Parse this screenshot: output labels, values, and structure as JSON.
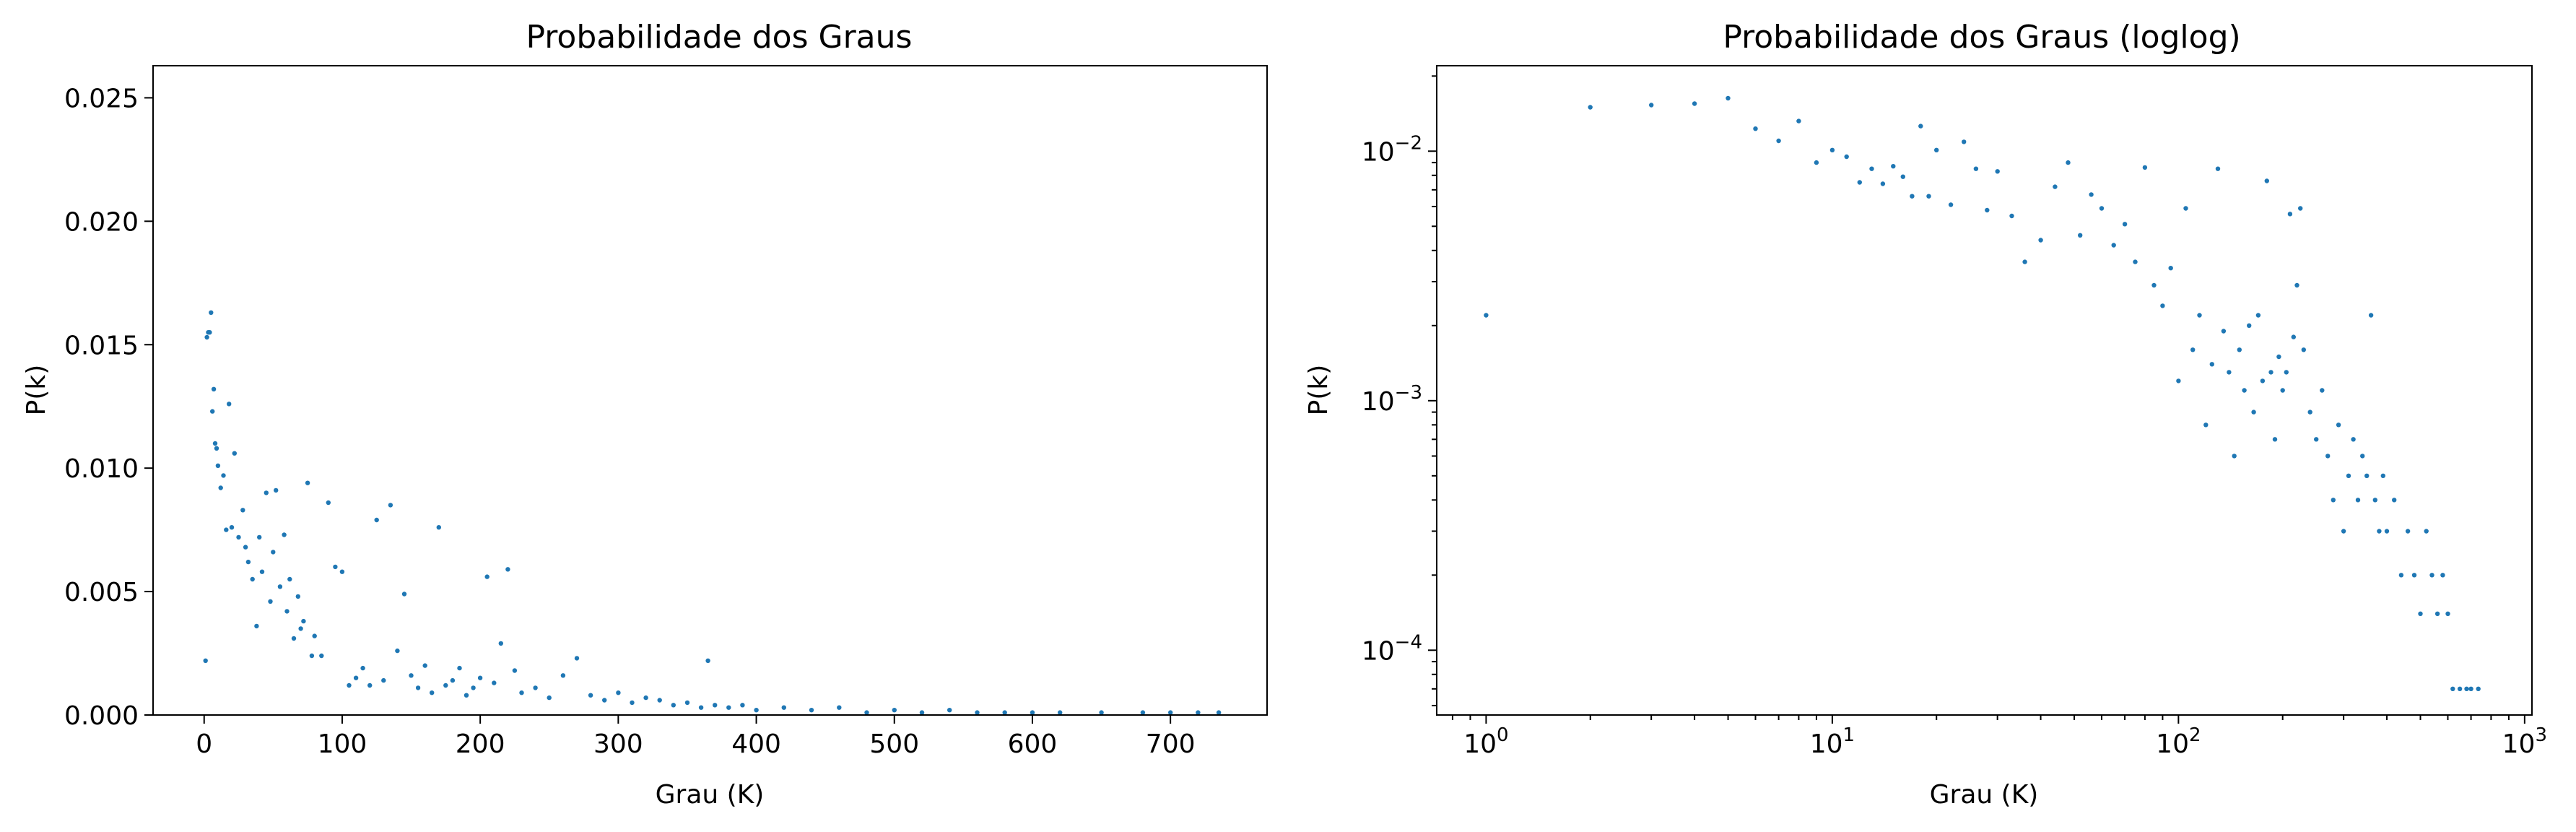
{
  "chart_data": [
    {
      "type": "scatter",
      "title": "Probabilidade dos Graus",
      "xlabel": "Grau (K)",
      "ylabel": "P(k)",
      "xscale": "linear",
      "yscale": "linear",
      "xlim": [
        -37,
        770
      ],
      "ylim": [
        0,
        0.0263
      ],
      "xticks": [
        0,
        100,
        200,
        300,
        400,
        500,
        600,
        700
      ],
      "xtick_labels": [
        "0",
        "100",
        "200",
        "300",
        "400",
        "500",
        "600",
        "700"
      ],
      "yticks": [
        0,
        0.005,
        0.01,
        0.015,
        0.02,
        0.025
      ],
      "ytick_labels": [
        "0.000",
        "0.005",
        "0.010",
        "0.015",
        "0.020",
        "0.025"
      ],
      "color": "#1f77b4",
      "x": [
        1,
        2,
        3,
        4,
        5,
        6,
        7,
        8,
        9,
        10,
        12,
        14,
        16,
        18,
        20,
        22,
        25,
        28,
        30,
        32,
        35,
        38,
        40,
        42,
        45,
        48,
        50,
        52,
        55,
        58,
        60,
        62,
        65,
        68,
        70,
        72,
        75,
        78,
        80,
        85,
        90,
        95,
        100,
        105,
        110,
        115,
        120,
        125,
        130,
        135,
        140,
        145,
        150,
        155,
        160,
        165,
        170,
        175,
        180,
        185,
        190,
        195,
        200,
        205,
        210,
        215,
        220,
        225,
        230,
        240,
        250,
        260,
        270,
        280,
        290,
        300,
        310,
        320,
        330,
        340,
        350,
        360,
        365,
        370,
        380,
        390,
        400,
        420,
        440,
        460,
        480,
        500,
        520,
        540,
        560,
        580,
        600,
        620,
        650,
        680,
        700,
        720,
        735
      ],
      "y": [
        0.0022,
        0.0153,
        0.0155,
        0.0155,
        0.0163,
        0.0123,
        0.0132,
        0.011,
        0.0108,
        0.0101,
        0.0092,
        0.0097,
        0.0075,
        0.0126,
        0.0076,
        0.0106,
        0.0072,
        0.0083,
        0.0068,
        0.0062,
        0.0055,
        0.0036,
        0.0072,
        0.0058,
        0.009,
        0.0046,
        0.0066,
        0.0091,
        0.0052,
        0.0073,
        0.0042,
        0.0055,
        0.0031,
        0.0048,
        0.0035,
        0.0038,
        0.0094,
        0.0024,
        0.0032,
        0.0024,
        0.0086,
        0.006,
        0.0058,
        0.0012,
        0.0015,
        0.0019,
        0.0012,
        0.0079,
        0.0014,
        0.0085,
        0.0026,
        0.0049,
        0.0016,
        0.0011,
        0.002,
        0.0009,
        0.0076,
        0.0012,
        0.0014,
        0.0019,
        0.0008,
        0.0011,
        0.0015,
        0.0056,
        0.0013,
        0.0029,
        0.0059,
        0.0018,
        0.0009,
        0.0011,
        0.0007,
        0.0016,
        0.0023,
        0.0008,
        0.0006,
        0.0009,
        0.0005,
        0.0007,
        0.0006,
        0.0004,
        0.0005,
        0.0003,
        0.0022,
        0.0004,
        0.0003,
        0.0004,
        0.0002,
        0.0003,
        0.0002,
        0.0003,
        0.0001,
        0.0002,
        0.0001,
        0.0002,
        0.0001,
        0.0001,
        0.0001,
        0.0001,
        0.0001,
        0.0001,
        0.0001,
        0.0001,
        0.0001
      ]
    },
    {
      "type": "scatter",
      "title": "Probabilidade dos Graus (loglog)",
      "xlabel": "Grau (K)",
      "ylabel": "P(k)",
      "xscale": "log",
      "yscale": "log",
      "xlim": [
        0.72,
        1050
      ],
      "ylim": [
        5.5e-05,
        0.022
      ],
      "xticks": [
        1,
        10,
        100,
        1000
      ],
      "xtick_labels": [
        {
          "base": "10",
          "exp": "0"
        },
        {
          "base": "10",
          "exp": "1"
        },
        {
          "base": "10",
          "exp": "2"
        },
        {
          "base": "10",
          "exp": "3"
        }
      ],
      "yticks": [
        0.0001,
        0.001,
        0.01
      ],
      "ytick_labels": [
        {
          "base": "10",
          "exp": "−4"
        },
        {
          "base": "10",
          "exp": "−3"
        },
        {
          "base": "10",
          "exp": "−2"
        }
      ],
      "color": "#1f77b4",
      "x": [
        1,
        2,
        3,
        4,
        5,
        6,
        7,
        8,
        9,
        10,
        11,
        12,
        13,
        14,
        15,
        16,
        17,
        18,
        19,
        20,
        22,
        24,
        26,
        28,
        30,
        33,
        36,
        40,
        44,
        48,
        52,
        56,
        60,
        65,
        70,
        75,
        80,
        85,
        90,
        95,
        100,
        105,
        110,
        115,
        120,
        125,
        130,
        135,
        140,
        145,
        150,
        155,
        160,
        165,
        170,
        175,
        180,
        185,
        190,
        195,
        200,
        205,
        210,
        215,
        220,
        225,
        230,
        240,
        250,
        260,
        270,
        280,
        290,
        300,
        310,
        320,
        330,
        340,
        350,
        360,
        370,
        380,
        390,
        400,
        420,
        440,
        460,
        480,
        500,
        520,
        540,
        560,
        580,
        600,
        620,
        650,
        680,
        700,
        735
      ],
      "y": [
        0.0022,
        0.015,
        0.0153,
        0.0155,
        0.0163,
        0.0123,
        0.011,
        0.0132,
        0.009,
        0.0101,
        0.0095,
        0.0075,
        0.0085,
        0.0074,
        0.0087,
        0.0079,
        0.0066,
        0.0126,
        0.0066,
        0.0101,
        0.0061,
        0.0109,
        0.0085,
        0.0058,
        0.0083,
        0.0055,
        0.0036,
        0.0044,
        0.0072,
        0.009,
        0.0046,
        0.0067,
        0.0059,
        0.0042,
        0.0051,
        0.0036,
        0.0086,
        0.0029,
        0.0024,
        0.0034,
        0.0012,
        0.0059,
        0.0016,
        0.0022,
        0.0008,
        0.0014,
        0.0085,
        0.0019,
        0.0013,
        0.0006,
        0.0016,
        0.0011,
        0.002,
        0.0009,
        0.0022,
        0.0012,
        0.0076,
        0.0013,
        0.0007,
        0.0015,
        0.0011,
        0.0013,
        0.0056,
        0.0018,
        0.0029,
        0.0059,
        0.0016,
        0.0009,
        0.0007,
        0.0011,
        0.0006,
        0.0004,
        0.0008,
        0.0003,
        0.0005,
        0.0007,
        0.0004,
        0.0006,
        0.0005,
        0.0022,
        0.0004,
        0.0003,
        0.0005,
        0.0003,
        0.0004,
        0.0002,
        0.0003,
        0.0002,
        0.00014,
        0.0003,
        0.0002,
        0.00014,
        0.0002,
        0.00014,
        7e-05,
        7e-05,
        7e-05,
        7e-05,
        7e-05
      ]
    }
  ]
}
